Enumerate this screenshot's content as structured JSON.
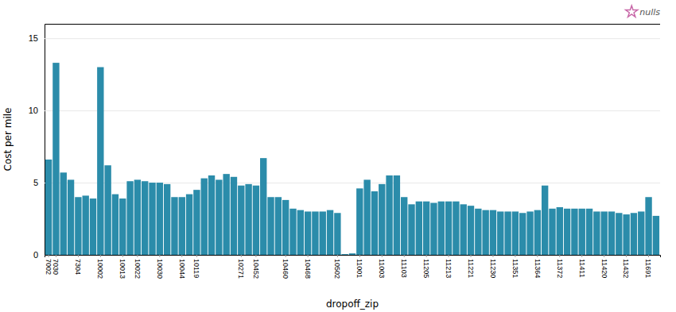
{
  "chart_data": {
    "type": "bar",
    "xlabel": "dropoff_zip",
    "ylabel": "Cost per mile",
    "categories": [
      "7002",
      "7030",
      null,
      null,
      "7304",
      null,
      null,
      "10002",
      null,
      null,
      "10013",
      null,
      "10022",
      null,
      null,
      "10030",
      null,
      null,
      "10044",
      null,
      "10119",
      null,
      null,
      null,
      null,
      null,
      "10271",
      null,
      "10452",
      null,
      null,
      null,
      "10460",
      null,
      null,
      "10468",
      null,
      null,
      null,
      "10502",
      null,
      null,
      "11001",
      null,
      null,
      "11003",
      null,
      null,
      "11103",
      null,
      null,
      "11205",
      null,
      null,
      "11213",
      null,
      null,
      "11221",
      null,
      null,
      "11230",
      null,
      null,
      "11351",
      null,
      null,
      "11364",
      null,
      null,
      "11372",
      null,
      null,
      "11411",
      null,
      null,
      "11420",
      null,
      null,
      "11432",
      null,
      null,
      "11691",
      null
    ],
    "series": [
      {
        "type": "bar",
        "color": "#2b8caa",
        "values": [
          6.6,
          13.3,
          5.7,
          5.2,
          4.0,
          4.1,
          3.9,
          13.0,
          6.2,
          4.2,
          3.9,
          5.1,
          5.2,
          5.1,
          5.0,
          5.0,
          4.9,
          4.0,
          4.0,
          4.2,
          4.5,
          5.3,
          5.5,
          5.2,
          5.6,
          5.4,
          4.8,
          4.9,
          4.8,
          6.7,
          4.0,
          4.0,
          3.8,
          3.2,
          3.1,
          3.0,
          3.0,
          3.0,
          3.1,
          2.9,
          0.05,
          0.1,
          4.6,
          5.2,
          4.4,
          4.9,
          5.5,
          5.5,
          4.0,
          3.5,
          3.7,
          3.7,
          3.6,
          3.7,
          3.7,
          3.7,
          3.5,
          3.4,
          3.2,
          3.1,
          3.1,
          3.0,
          3.0,
          3.0,
          2.9,
          3.0,
          3.1,
          4.8,
          3.2,
          3.3,
          3.2,
          3.2,
          3.2,
          3.2,
          3.0,
          3.0,
          3.0,
          2.9,
          2.8,
          2.9,
          3.0,
          4.0,
          2.7
        ]
      },
      {
        "name": "nulls",
        "type": "scatter",
        "marker": "star",
        "color": "#c868a8",
        "values": [
          null,
          null,
          null,
          null,
          null,
          null,
          null,
          null,
          null,
          null,
          null,
          null,
          null,
          null,
          null,
          null,
          null,
          null,
          null,
          null,
          null,
          null,
          null,
          null,
          null,
          null,
          null,
          null,
          null,
          null,
          null,
          null,
          null,
          null,
          null,
          null,
          null,
          null,
          null,
          null,
          null,
          null,
          null,
          null,
          null,
          null,
          null,
          null,
          null,
          null,
          null,
          null,
          null,
          null,
          null,
          null,
          null,
          null,
          null,
          null,
          null,
          null,
          null,
          null,
          null,
          null,
          null,
          null,
          null,
          null,
          null,
          null,
          null,
          null,
          null,
          null,
          null,
          null,
          null,
          null,
          null,
          null,
          null
        ]
      }
    ],
    "ylim": [
      0,
      16.0
    ],
    "yticks": [
      0,
      5,
      10,
      15
    ],
    "grid": true,
    "legend": "upper right"
  }
}
